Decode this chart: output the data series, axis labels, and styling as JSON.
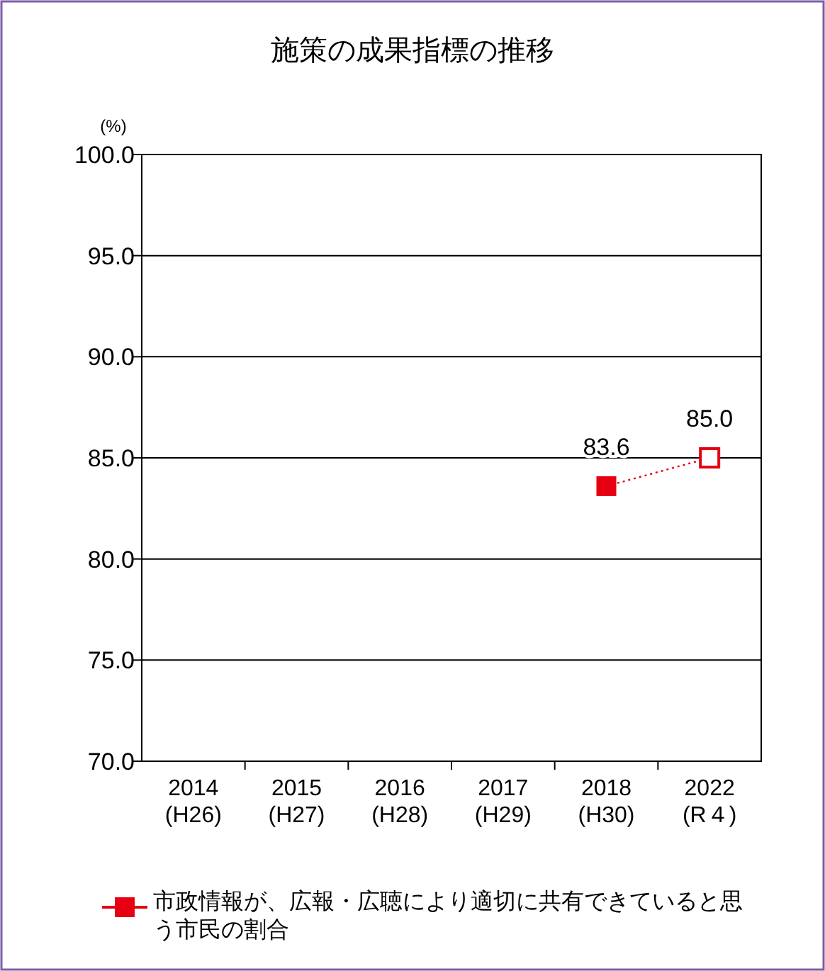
{
  "chart_data": {
    "type": "line",
    "title": "施策の成果指標の推移",
    "ylabel": "(%)",
    "categories": [
      "2014\n(H26)",
      "2015\n(H27)",
      "2016\n(H28)",
      "2017\n(H29)",
      "2018\n(H30)",
      "2022\n(R４)"
    ],
    "series": [
      {
        "name": "市政情報が、広報・広聴により適切に共有できていると思う市民の割合",
        "color": "#e60012",
        "values": [
          null,
          null,
          null,
          null,
          83.6,
          85.0
        ]
      }
    ],
    "value_labels": [
      null,
      null,
      null,
      null,
      "83.6",
      "85.0"
    ],
    "ylim": [
      70,
      100
    ],
    "yticks": [
      {
        "value": 70,
        "label": "70.0"
      },
      {
        "value": 75,
        "label": "75.0"
      },
      {
        "value": 80,
        "label": "80.0"
      },
      {
        "value": 85,
        "label": "85.0"
      },
      {
        "value": 90,
        "label": "90.0"
      },
      {
        "value": 95,
        "label": "95.0"
      },
      {
        "value": 100,
        "label": "100.0"
      }
    ],
    "grid": "y",
    "legend": "bottom",
    "marker": "square",
    "line_style": "dotted"
  }
}
